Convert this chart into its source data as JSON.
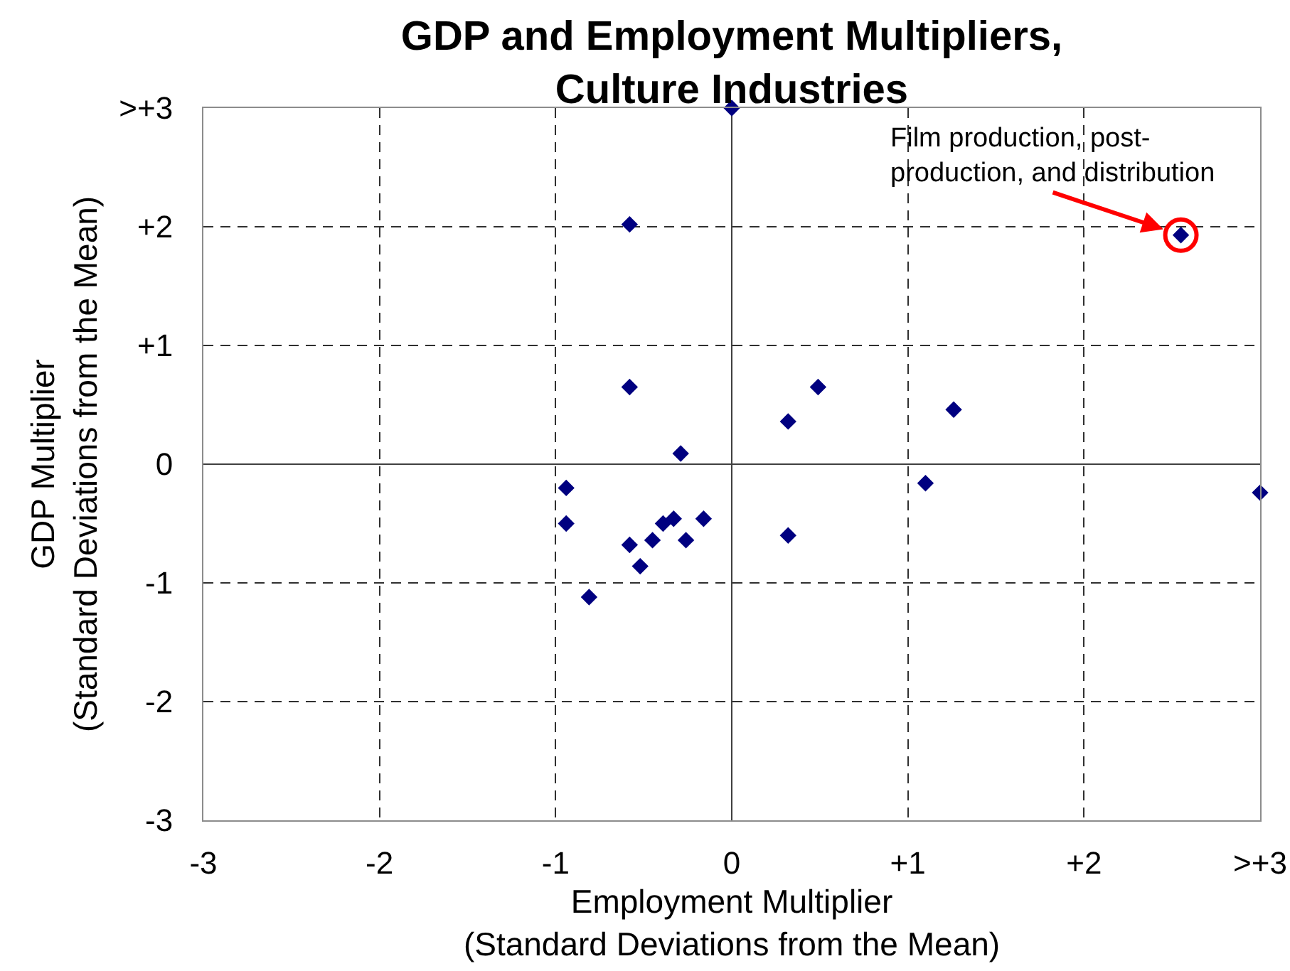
{
  "chart_data": {
    "type": "scatter",
    "title": "GDP and Employment Multipliers,\nCulture Industries",
    "xlabel": "Employment Multiplier\n(Standard Deviations from the Mean)",
    "ylabel": "GDP Multiplier\n(Standard Deviations from the Mean)",
    "x": [
      -0.29,
      -0.94,
      -0.94,
      -0.58,
      -0.45,
      -0.39,
      -0.33,
      -0.26,
      -0.16,
      -0.52,
      -0.81,
      0.32,
      1.1,
      0,
      -0.58,
      -0.58,
      0.49,
      0.32,
      1.26,
      3,
      2.55
    ],
    "values": [
      0.09,
      -0.2,
      -0.5,
      -0.68,
      -0.64,
      -0.5,
      -0.46,
      -0.64,
      -0.46,
      -0.86,
      -1.12,
      -0.6,
      -0.16,
      3,
      2.02,
      0.65,
      0.65,
      0.36,
      0.46,
      -0.24,
      1.93
    ],
    "color": "#000080",
    "marker": "diamond",
    "xlim": [
      -3,
      3
    ],
    "xticks": [
      -3,
      -2,
      -1,
      0,
      {
        "value": 1,
        "label": "+1"
      },
      {
        "value": 2,
        "label": "+2"
      },
      {
        "value": 3,
        "label": ">+3"
      }
    ],
    "ylim": [
      -3,
      3
    ],
    "yticks": [
      -3,
      -2,
      -1,
      0,
      {
        "value": 1,
        "label": "+1"
      },
      {
        "value": 2,
        "label": "+2"
      },
      {
        "value": 3,
        "label": ">+3"
      }
    ],
    "grid": true,
    "annotations": [
      {
        "text": "Film production, post-\nproduction, and distribution",
        "x": 2.55,
        "y": 1.93
      }
    ]
  }
}
